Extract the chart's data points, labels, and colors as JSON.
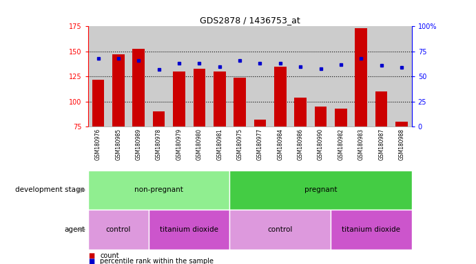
{
  "title": "GDS2878 / 1436753_at",
  "samples": [
    "GSM180976",
    "GSM180985",
    "GSM180989",
    "GSM180978",
    "GSM180979",
    "GSM180980",
    "GSM180981",
    "GSM180975",
    "GSM180977",
    "GSM180984",
    "GSM180986",
    "GSM180990",
    "GSM180982",
    "GSM180983",
    "GSM180987",
    "GSM180988"
  ],
  "counts": [
    122,
    147,
    153,
    90,
    130,
    133,
    130,
    124,
    82,
    135,
    104,
    95,
    93,
    173,
    110,
    80
  ],
  "percentile_ranks": [
    68,
    68,
    66,
    57,
    63,
    63,
    60,
    66,
    63,
    63,
    60,
    58,
    62,
    68,
    61,
    59
  ],
  "ylim_left": [
    75,
    175
  ],
  "ylim_right": [
    0,
    100
  ],
  "yticks_left": [
    75,
    100,
    125,
    150,
    175
  ],
  "yticks_right": [
    0,
    25,
    50,
    75,
    100
  ],
  "yticklabels_right": [
    "0",
    "25",
    "50",
    "75",
    "100%"
  ],
  "bar_color": "#cc0000",
  "dot_color": "#0000cc",
  "bar_bottom": 75,
  "development_stage_groups": [
    {
      "label": "non-pregnant",
      "start": 0,
      "end": 7,
      "color": "#90ee90"
    },
    {
      "label": "pregnant",
      "start": 7,
      "end": 16,
      "color": "#44cc44"
    }
  ],
  "agent_groups": [
    {
      "label": "control",
      "start": 0,
      "end": 3,
      "color": "#dd99dd"
    },
    {
      "label": "titanium dioxide",
      "start": 3,
      "end": 7,
      "color": "#cc55cc"
    },
    {
      "label": "control",
      "start": 7,
      "end": 12,
      "color": "#dd99dd"
    },
    {
      "label": "titanium dioxide",
      "start": 12,
      "end": 16,
      "color": "#cc55cc"
    }
  ],
  "tick_bg_color": "#cccccc",
  "background_color": "#ffffff",
  "dotted_yticks": [
    100,
    125,
    150
  ],
  "row_label_dev_stage": "development stage",
  "row_label_agent": "agent",
  "legend_count_label": "count",
  "legend_pct_label": "percentile rank within the sample"
}
